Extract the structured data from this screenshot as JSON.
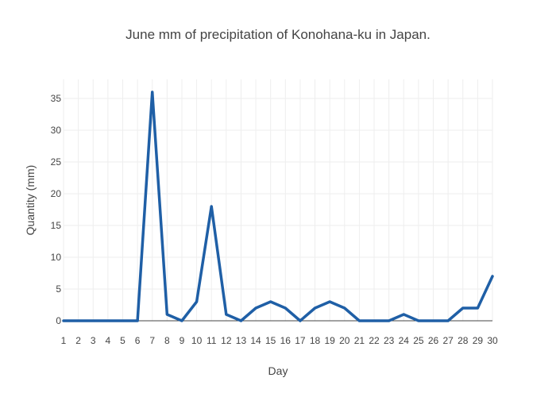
{
  "chart_data": {
    "type": "line",
    "title": "June mm of precipitation of Konohana-ku in Japan.",
    "xlabel": "Day",
    "ylabel": "Quantity (mm)",
    "x": [
      1,
      2,
      3,
      4,
      5,
      6,
      7,
      8,
      9,
      10,
      11,
      12,
      13,
      14,
      15,
      16,
      17,
      18,
      19,
      20,
      21,
      22,
      23,
      24,
      25,
      26,
      27,
      28,
      29,
      30
    ],
    "series": [
      {
        "values": [
          0,
          0,
          0,
          0,
          0,
          0,
          36,
          1,
          0,
          3,
          18,
          1,
          0,
          2,
          3,
          2,
          0,
          2,
          3,
          2,
          0,
          0,
          0,
          1,
          0,
          0,
          0,
          2,
          2,
          7
        ]
      }
    ],
    "xlim": [
      1,
      30
    ],
    "ylim": [
      0,
      38
    ],
    "y_ticks": [
      0,
      5,
      10,
      15,
      20,
      25,
      30,
      35
    ],
    "grid": true,
    "legend": "none",
    "line_color": "#1f5fa6"
  }
}
